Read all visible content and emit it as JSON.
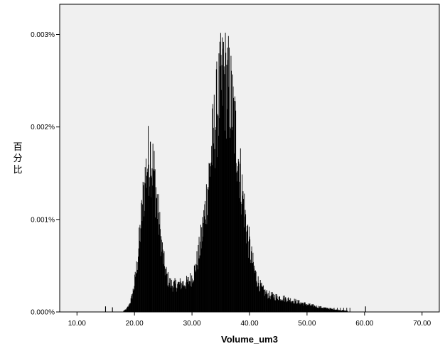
{
  "chart_data": {
    "type": "bar",
    "subtype": "histogram",
    "title": "",
    "xlabel": "Volume_um3",
    "ylabel": "百分比",
    "xlim": [
      7,
      73
    ],
    "ylim": [
      0,
      0.003
    ],
    "x_ticks": [
      10,
      20,
      30,
      40,
      50,
      60,
      70
    ],
    "x_tick_labels": [
      "10.00",
      "20.00",
      "30.00",
      "40.00",
      "50.00",
      "60.00",
      "70.00"
    ],
    "y_ticks": [
      0,
      0.001,
      0.002,
      0.003
    ],
    "y_tick_labels": [
      "0.000%",
      "0.001%",
      "0.002%",
      "0.003%"
    ],
    "grid": false,
    "legend": "none",
    "colors": {
      "plot_background": "#f0f0f0",
      "bars": "#000000",
      "axis": "#000000"
    },
    "density_curve": {
      "description_units": "x in um3, y in percent (plotted on axis scale)",
      "components": [
        {
          "mean": 22.6,
          "sd": 1.45,
          "peak": 0.0017
        },
        {
          "mean": 35.6,
          "sd": 2.6,
          "peak": 0.00255
        },
        {
          "mean": 27.5,
          "sd": 2.2,
          "peak": 0.00028
        },
        {
          "mean": 44.0,
          "sd": 4.2,
          "peak": 0.00016
        },
        {
          "mean": 52.0,
          "sd": 3.5,
          "peak": 3e-05
        }
      ]
    },
    "notable_bars": [
      {
        "x": 22.7,
        "y": 0.00184
      },
      {
        "x": 35.4,
        "y": 0.00292
      },
      {
        "x": 14.9,
        "y": 6e-05
      },
      {
        "x": 16.1,
        "y": 5e-05
      },
      {
        "x": 60.1,
        "y": 6e-05
      }
    ]
  }
}
